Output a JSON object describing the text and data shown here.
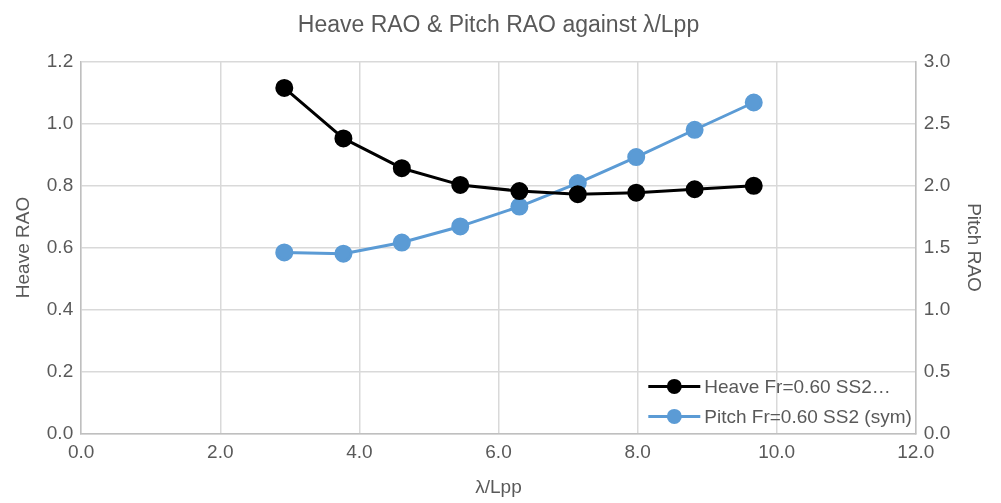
{
  "chart_data": {
    "type": "line",
    "title": "Heave RAO & Pitch RAO against λ/Lpp",
    "xlabel": "λ/Lpp",
    "ylabel": "Heave RAO",
    "y2label": "Pitch RAO",
    "x": [
      2.92,
      3.77,
      4.61,
      5.45,
      6.3,
      7.14,
      7.98,
      8.82,
      9.67
    ],
    "series": [
      {
        "name": "Heave Fr=0.60 SS2…",
        "color": "#000000",
        "values": [
          1.115,
          0.952,
          0.856,
          0.802,
          0.782,
          0.772,
          0.777,
          0.788,
          0.799
        ]
      },
      {
        "name": "Pitch Fr=0.60 SS2 (sym)",
        "color": "#5b9bd5",
        "axis": "y2",
        "values": [
          1.46,
          1.45,
          1.54,
          1.67,
          1.83,
          2.02,
          2.23,
          2.45,
          2.67
        ]
      }
    ],
    "xlim": [
      0,
      12
    ],
    "xticks": [
      {
        "value": 0,
        "label": "0.0"
      },
      {
        "value": 2,
        "label": "2.0"
      },
      {
        "value": 4,
        "label": "4.0"
      },
      {
        "value": 6,
        "label": "6.0"
      },
      {
        "value": 8,
        "label": "8.0"
      },
      {
        "value": 10,
        "label": "10.0"
      },
      {
        "value": 12,
        "label": "12.0"
      }
    ],
    "ylim": [
      0,
      1.2
    ],
    "yticks": [
      {
        "value": 0,
        "label": "0.0"
      },
      {
        "value": 0.2,
        "label": "0.2"
      },
      {
        "value": 0.4,
        "label": "0.4"
      },
      {
        "value": 0.6,
        "label": "0.6"
      },
      {
        "value": 0.8,
        "label": "0.8"
      },
      {
        "value": 1,
        "label": "1.0"
      },
      {
        "value": 1.2,
        "label": "1.2"
      }
    ],
    "y2lim": [
      0,
      3
    ],
    "y2ticks": [
      {
        "value": 0,
        "label": "0.0"
      },
      {
        "value": 0.5,
        "label": "0.5"
      },
      {
        "value": 1,
        "label": "1.0"
      },
      {
        "value": 1.5,
        "label": "1.5"
      },
      {
        "value": 2,
        "label": "2.0"
      },
      {
        "value": 2.5,
        "label": "2.5"
      },
      {
        "value": 3,
        "label": "3.0"
      }
    ],
    "grid": true,
    "legend": "bottom right",
    "marker": "circle",
    "line_style": "solid"
  }
}
